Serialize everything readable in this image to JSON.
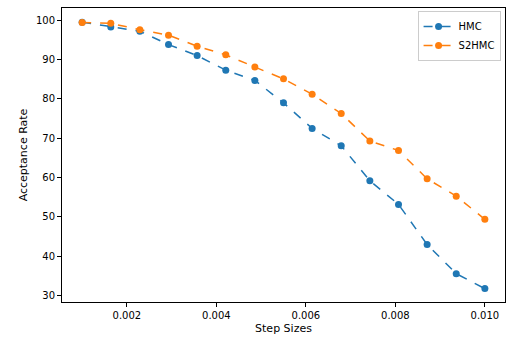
{
  "chart_data": {
    "type": "line",
    "x_label": "Step Sizes",
    "y_label": "Acceptance Rate",
    "x": [
      0.001,
      0.00164,
      0.00229,
      0.00293,
      0.00357,
      0.00421,
      0.00486,
      0.0055,
      0.00614,
      0.00679,
      0.00743,
      0.00807,
      0.00871,
      0.00936,
      0.01
    ],
    "series": [
      {
        "name": "HMC",
        "color": "#1f77b4",
        "marker": "circle",
        "line_style": "dashed",
        "values": [
          99.5,
          98.3,
          97.2,
          93.8,
          91.0,
          87.3,
          84.7,
          79.0,
          72.5,
          68.1,
          59.2,
          53.2,
          43.0,
          35.6,
          31.8
        ]
      },
      {
        "name": "S2HMC",
        "color": "#ff7f0e",
        "marker": "circle",
        "line_style": "dashed",
        "values": [
          99.4,
          99.2,
          97.6,
          96.2,
          93.4,
          91.2,
          88.1,
          85.1,
          81.2,
          76.3,
          69.3,
          66.9,
          59.7,
          55.3,
          49.4
        ]
      }
    ],
    "xlim": [
      0.00055,
      0.01045
    ],
    "xticks": [
      0.002,
      0.004,
      0.006,
      0.008,
      {
        "value": 0.01,
        "label": "0.010"
      }
    ],
    "ylim": [
      28.4,
      103.1
    ],
    "yticks": [
      30,
      40,
      50,
      60,
      70,
      80,
      90,
      100
    ],
    "grid": false,
    "legend": "top right"
  }
}
